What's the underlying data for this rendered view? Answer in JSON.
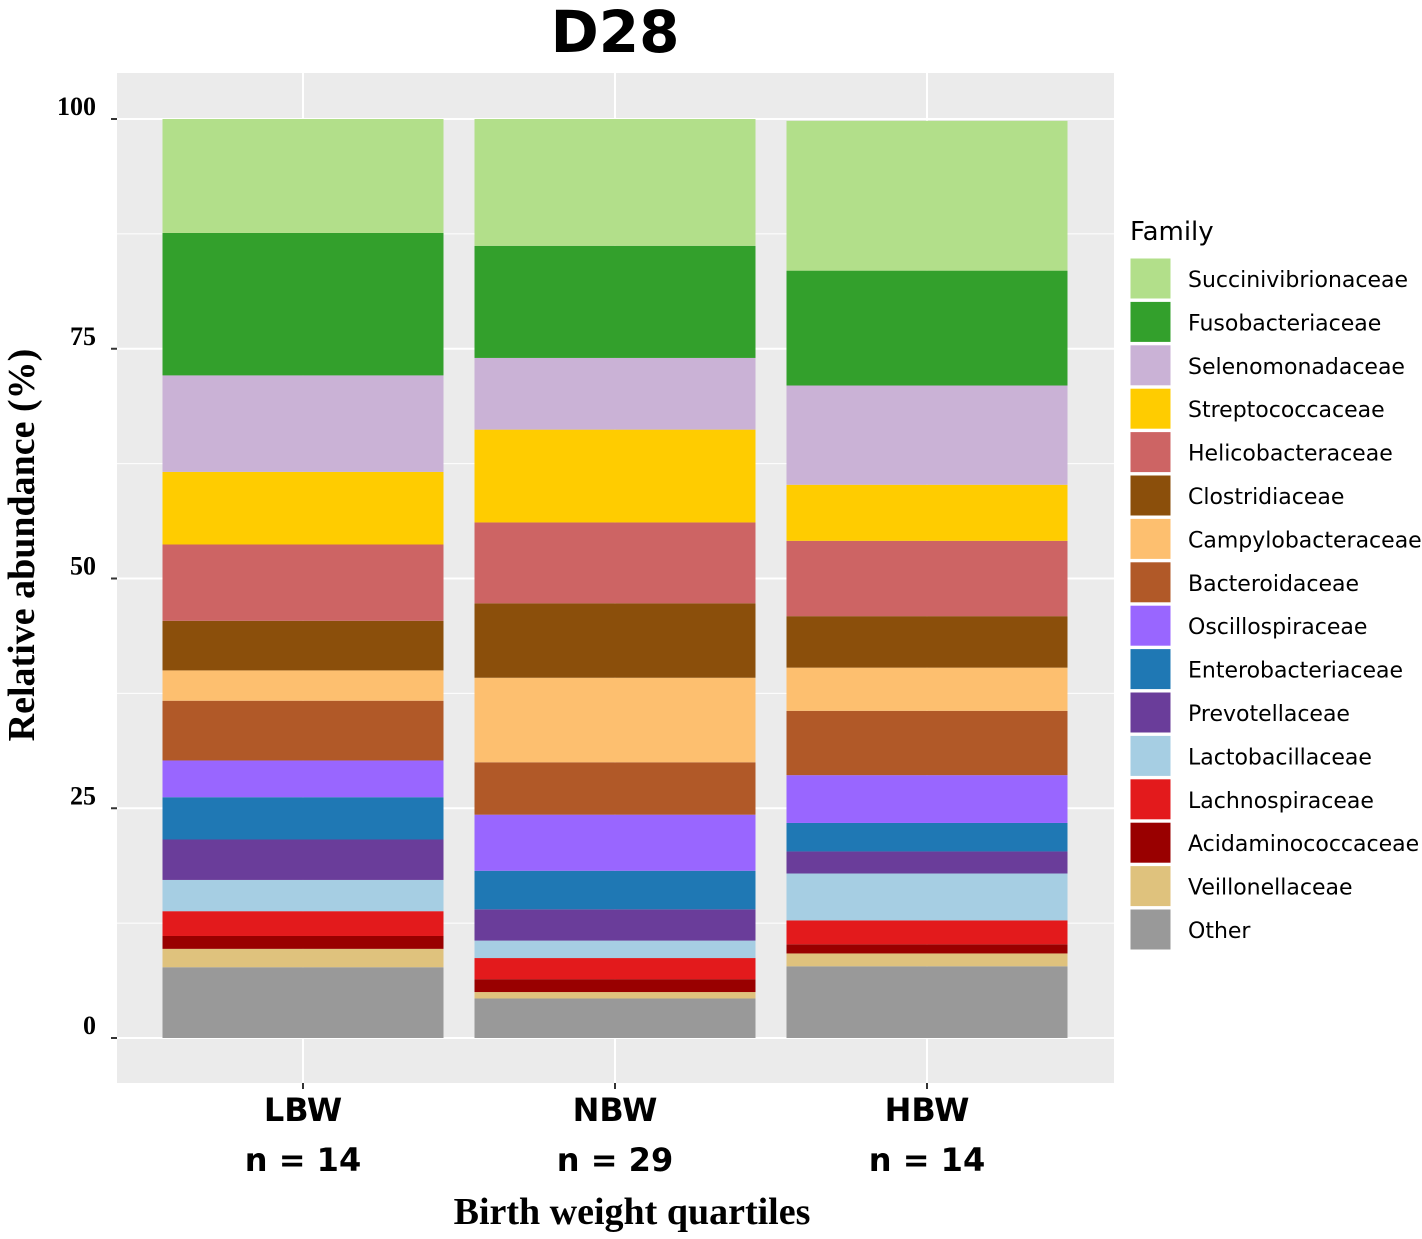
{
  "chart_data": {
    "type": "bar",
    "stacked": true,
    "title": "D28",
    "xlabel": "Birth weight quartiles",
    "ylabel": "Relative abundance (%)",
    "ylim": [
      0,
      100
    ],
    "yticks": [
      0,
      25,
      50,
      75,
      100
    ],
    "categories": [
      {
        "name": "LBW",
        "n": "n = 14"
      },
      {
        "name": "NBW",
        "n": "n = 29"
      },
      {
        "name": "HBW",
        "n": "n = 14"
      }
    ],
    "legend_title": "Family",
    "legend_position": "right",
    "grid": true,
    "series": [
      {
        "name": "Other",
        "color": "#999999",
        "values": [
          7.7,
          4.3,
          7.8
        ]
      },
      {
        "name": "Veillonellaceae",
        "color": "#DFC27D",
        "values": [
          2.0,
          0.7,
          1.4
        ]
      },
      {
        "name": "Acidaminococcaceae",
        "color": "#990000",
        "values": [
          1.4,
          1.4,
          1.0
        ]
      },
      {
        "name": "Lachnospiraceae",
        "color": "#E31A1C",
        "values": [
          2.7,
          2.3,
          2.6
        ]
      },
      {
        "name": "Lactobacillaceae",
        "color": "#A6CEE3",
        "values": [
          3.4,
          1.9,
          5.1
        ]
      },
      {
        "name": "Prevotellaceae",
        "color": "#6A3D9A",
        "values": [
          4.4,
          3.4,
          2.4
        ]
      },
      {
        "name": "Enterobacteriaceae",
        "color": "#1F78B4",
        "values": [
          4.6,
          4.2,
          3.1
        ]
      },
      {
        "name": "Oscillospiraceae",
        "color": "#9966FF",
        "values": [
          4.0,
          6.1,
          5.2
        ]
      },
      {
        "name": "Bacteroidaceae",
        "color": "#B15928",
        "values": [
          6.5,
          5.7,
          7.0
        ]
      },
      {
        "name": "Campylobacteraceae",
        "color": "#FDBF6F",
        "values": [
          3.3,
          9.2,
          4.7
        ]
      },
      {
        "name": "Clostridiaceae",
        "color": "#8B4F0B",
        "values": [
          5.4,
          8.1,
          5.6
        ]
      },
      {
        "name": "Helicobacteraceae",
        "color": "#CD6464",
        "values": [
          8.3,
          8.8,
          8.2
        ]
      },
      {
        "name": "Streptococcaceae",
        "color": "#FFCC00",
        "values": [
          7.9,
          10.1,
          6.1
        ]
      },
      {
        "name": "Selenomonadaceae",
        "color": "#CAB2D6",
        "values": [
          10.5,
          7.8,
          10.8
        ]
      },
      {
        "name": "Fusobacteriaceae",
        "color": "#33A02C",
        "values": [
          15.5,
          12.2,
          12.5
        ]
      },
      {
        "name": "Succinivibrionaceae",
        "color": "#B2DF8A",
        "values": [
          12.4,
          13.8,
          16.3
        ]
      }
    ],
    "legend_order": [
      "Succinivibrionaceae",
      "Fusobacteriaceae",
      "Selenomonadaceae",
      "Streptococcaceae",
      "Helicobacteraceae",
      "Clostridiaceae",
      "Campylobacteraceae",
      "Bacteroidaceae",
      "Oscillospiraceae",
      "Enterobacteriaceae",
      "Prevotellaceae",
      "Lactobacillaceae",
      "Lachnospiraceae",
      "Acidaminococcaceae",
      "Veillonellaceae",
      "Other"
    ],
    "panel_background": "#EBEBEB",
    "gridline_color": "#FFFFFF"
  }
}
